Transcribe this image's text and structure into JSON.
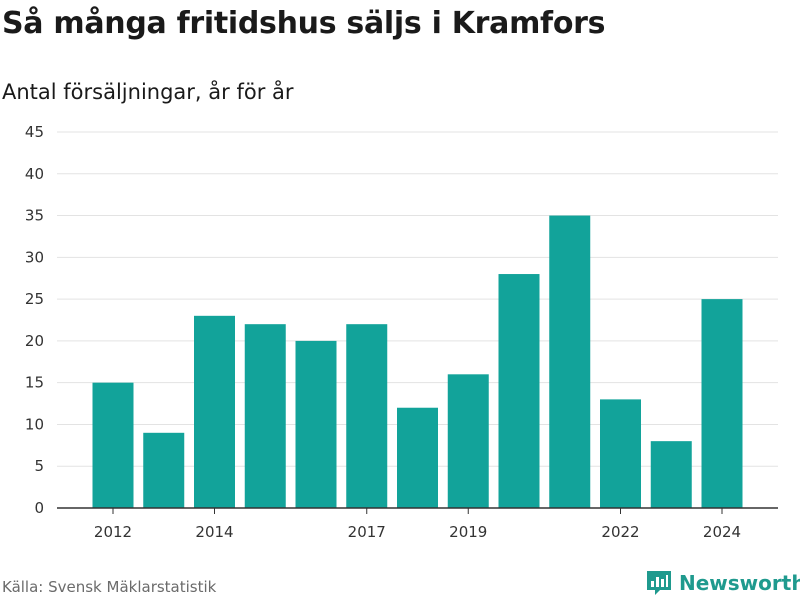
{
  "title": "Så många fritidshus säljs i Kramfors",
  "subtitle": "Antal försäljningar, år för år",
  "source": "Källa: Svensk Mäklarstatistik",
  "brand": {
    "name": "Newsworthy",
    "icon": "bar-chart-logo-icon",
    "color": "#1f9a8e"
  },
  "colors": {
    "bar": "#12a39a",
    "grid": "#e3e3e3",
    "axis": "#333333"
  },
  "chart_data": {
    "type": "bar",
    "title": "Så många fritidshus säljs i Kramfors",
    "subtitle": "Antal försäljningar, år för år",
    "x": [
      2012,
      2013,
      2014,
      2015,
      2016,
      2017,
      2018,
      2019,
      2020,
      2021,
      2022,
      2023,
      2024
    ],
    "values": [
      15,
      9,
      23,
      22,
      20,
      22,
      12,
      16,
      28,
      35,
      13,
      8,
      25
    ],
    "x_tick_labels": [
      "2012",
      "2014",
      "2017",
      "2019",
      "2022",
      "2024"
    ],
    "y_ticks": [
      0,
      5,
      10,
      15,
      20,
      25,
      30,
      35,
      40,
      45
    ],
    "ylim": [
      0,
      45
    ],
    "grid": true,
    "legend": false
  }
}
